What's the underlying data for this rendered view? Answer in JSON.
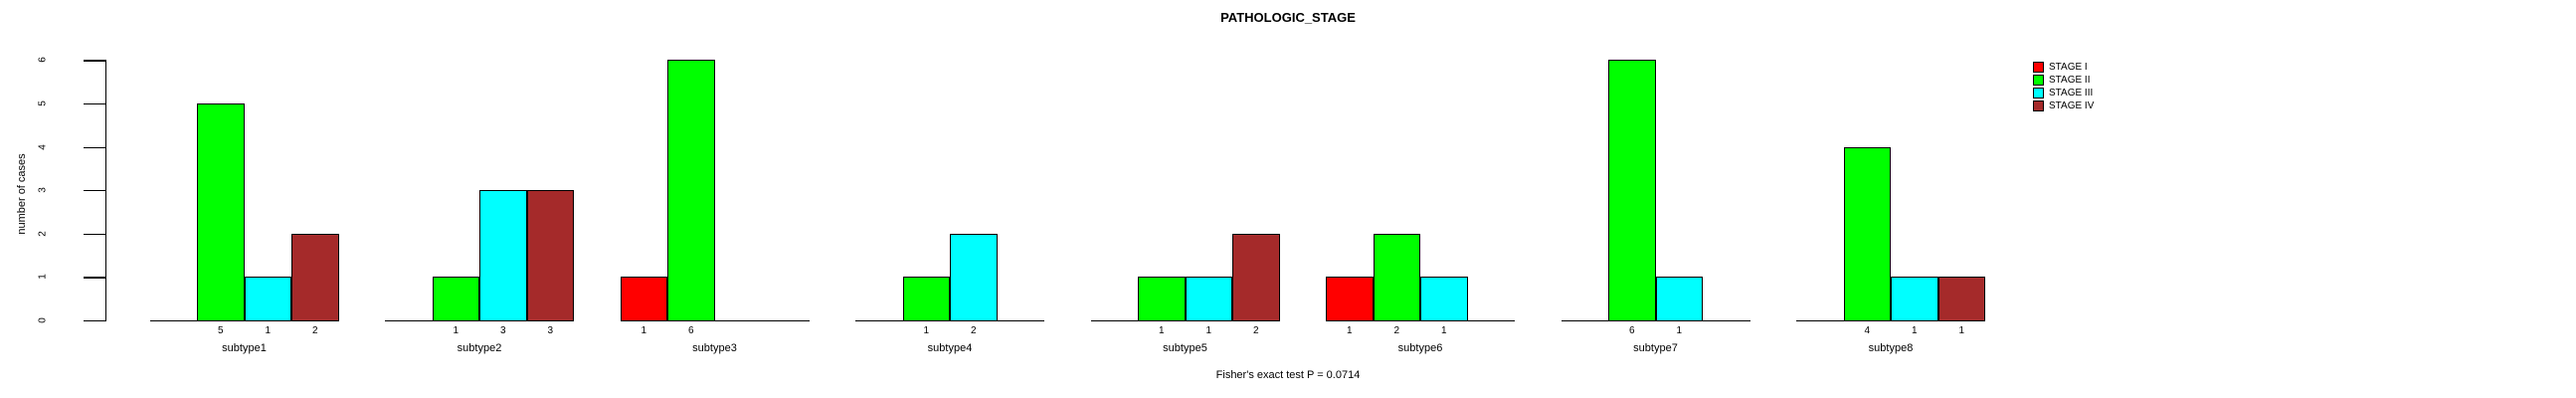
{
  "title": "PATHOLOGIC_STAGE",
  "caption": "Fisher's exact test P = 0.0714",
  "y_axis": {
    "label": "number of cases",
    "ticks": [
      "0",
      "1",
      "2",
      "3",
      "4",
      "5",
      "6"
    ]
  },
  "legend": {
    "entries": [
      {
        "label": "STAGE I",
        "color": "#FF0000"
      },
      {
        "label": "STAGE II",
        "color": "#00FF00"
      },
      {
        "label": "STAGE III",
        "color": "#00FFFF"
      },
      {
        "label": "STAGE IV",
        "color": "#A52A2A"
      }
    ]
  },
  "chart_data": {
    "type": "bar",
    "title": "PATHOLOGIC_STAGE",
    "xlabel": "",
    "ylabel": "number of cases",
    "ylim": [
      0,
      6
    ],
    "yticks": [
      0,
      1,
      2,
      3,
      4,
      5,
      6
    ],
    "grid": false,
    "legend_position": "right",
    "bar_value_labels": true,
    "annotation": "Fisher's exact test P = 0.0714",
    "categories": [
      "subtype1",
      "subtype2",
      "subtype3",
      "subtype4",
      "subtype5",
      "subtype6",
      "subtype7",
      "subtype8"
    ],
    "series": [
      {
        "name": "STAGE I",
        "color": "#FF0000",
        "values": [
          0,
          0,
          1,
          0,
          0,
          1,
          0,
          0
        ]
      },
      {
        "name": "STAGE II",
        "color": "#00FF00",
        "values": [
          5,
          1,
          6,
          1,
          1,
          2,
          6,
          4
        ]
      },
      {
        "name": "STAGE III",
        "color": "#00FFFF",
        "values": [
          1,
          3,
          0,
          2,
          1,
          1,
          1,
          1
        ]
      },
      {
        "name": "STAGE IV",
        "color": "#A52A2A",
        "values": [
          2,
          3,
          0,
          0,
          2,
          0,
          0,
          1
        ]
      }
    ]
  }
}
